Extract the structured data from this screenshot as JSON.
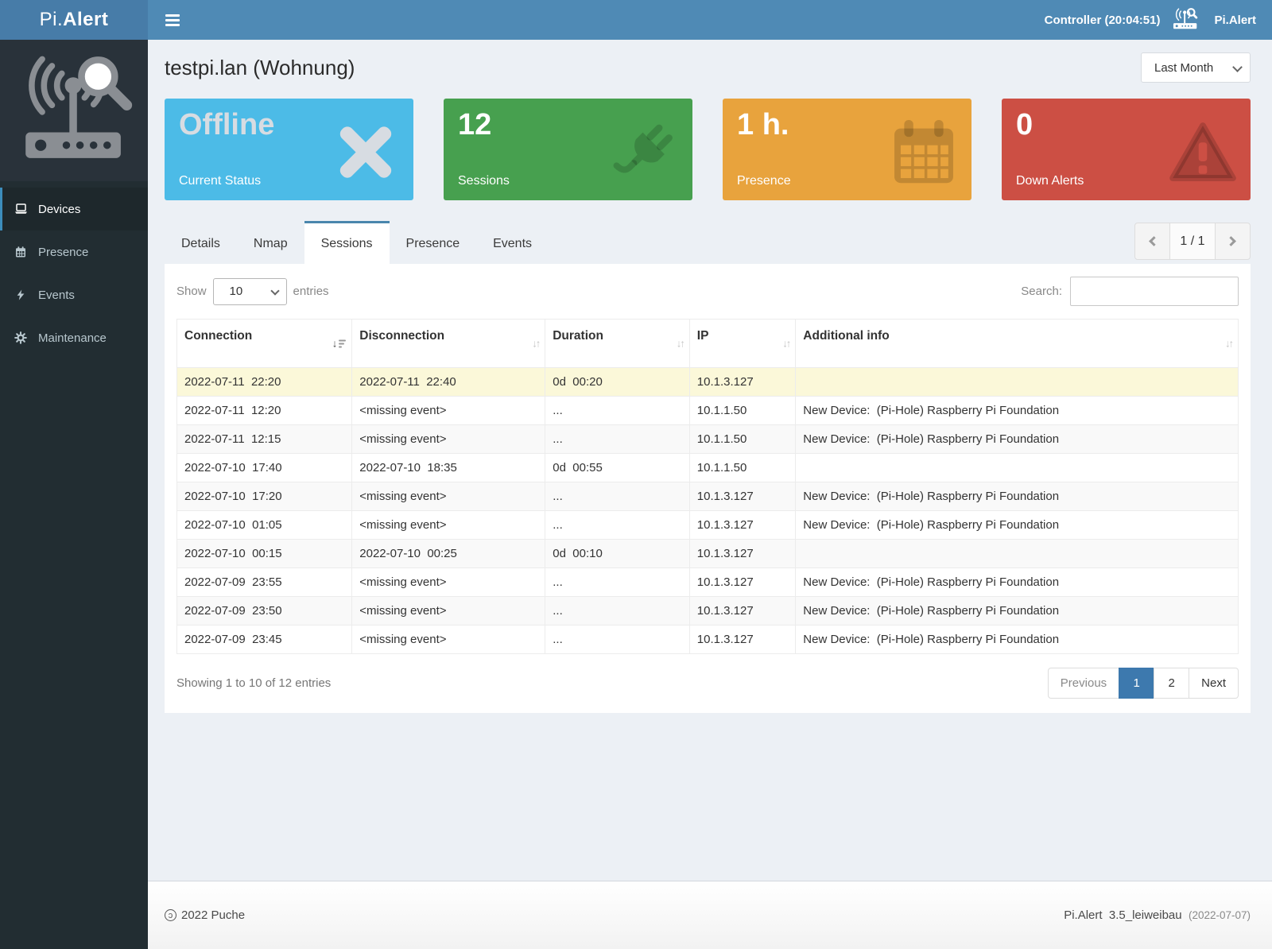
{
  "topbar": {
    "brand": {
      "prefix": "Pi.",
      "suffix": "Alert"
    },
    "controller_label": "Controller (20:04:51)",
    "app_label": "Pi.Alert"
  },
  "sidebar": {
    "items": [
      {
        "label": "Devices",
        "icon": "laptop-icon",
        "active": true
      },
      {
        "label": "Presence",
        "icon": "calendar-icon",
        "active": false
      },
      {
        "label": "Events",
        "icon": "bolt-icon",
        "active": false
      },
      {
        "label": "Maintenance",
        "icon": "gear-icon",
        "active": false
      }
    ]
  },
  "page": {
    "title": "testpi.lan (Wohnung)",
    "period_selected": "Last Month"
  },
  "cards": [
    {
      "value": "Offline",
      "label": "Current Status",
      "color": "#4cbbe7",
      "icon": "x-mark-icon",
      "muted_value": true
    },
    {
      "value": "12",
      "label": "Sessions",
      "color": "#47a04f",
      "icon": "plug-icon",
      "muted_value": false
    },
    {
      "value": "1 h.",
      "label": "Presence",
      "color": "#e8a33d",
      "icon": "calendar-icon",
      "muted_value": false
    },
    {
      "value": "0",
      "label": "Down Alerts",
      "color": "#cc4f44",
      "icon": "warning-icon",
      "muted_value": false
    }
  ],
  "tabs": {
    "items": [
      "Details",
      "Nmap",
      "Sessions",
      "Presence",
      "Events"
    ],
    "active": "Sessions",
    "pager_label": "1 / 1"
  },
  "table_controls": {
    "show_label": "Show",
    "length_value": "10",
    "entries_label": "entries",
    "search_label": "Search:",
    "search_value": ""
  },
  "table": {
    "columns": [
      "Connection",
      "Disconnection",
      "Duration",
      "IP",
      "Additional info"
    ],
    "rows": [
      {
        "connection": "2022-07-11  22:20",
        "disconnection": "2022-07-11  22:40",
        "duration": "0d  00:20",
        "ip": "10.1.3.127",
        "info": "",
        "highlight": true
      },
      {
        "connection": "2022-07-11  12:20",
        "disconnection": "<missing event>",
        "duration": "...",
        "ip": "10.1.1.50",
        "info": "New Device:  (Pi-Hole) Raspberry Pi Foundation",
        "highlight": false
      },
      {
        "connection": "2022-07-11  12:15",
        "disconnection": "<missing event>",
        "duration": "...",
        "ip": "10.1.1.50",
        "info": "New Device:  (Pi-Hole) Raspberry Pi Foundation",
        "highlight": false
      },
      {
        "connection": "2022-07-10  17:40",
        "disconnection": "2022-07-10  18:35",
        "duration": "0d  00:55",
        "ip": "10.1.1.50",
        "info": "",
        "highlight": false
      },
      {
        "connection": "2022-07-10  17:20",
        "disconnection": "<missing event>",
        "duration": "...",
        "ip": "10.1.3.127",
        "info": "New Device:  (Pi-Hole) Raspberry Pi Foundation",
        "highlight": false
      },
      {
        "connection": "2022-07-10  01:05",
        "disconnection": "<missing event>",
        "duration": "...",
        "ip": "10.1.3.127",
        "info": "New Device:  (Pi-Hole) Raspberry Pi Foundation",
        "highlight": false
      },
      {
        "connection": "2022-07-10  00:15",
        "disconnection": "2022-07-10  00:25",
        "duration": "0d  00:10",
        "ip": "10.1.3.127",
        "info": "",
        "highlight": false
      },
      {
        "connection": "2022-07-09  23:55",
        "disconnection": "<missing event>",
        "duration": "...",
        "ip": "10.1.3.127",
        "info": "New Device:  (Pi-Hole) Raspberry Pi Foundation",
        "highlight": false
      },
      {
        "connection": "2022-07-09  23:50",
        "disconnection": "<missing event>",
        "duration": "...",
        "ip": "10.1.3.127",
        "info": "New Device:  (Pi-Hole) Raspberry Pi Foundation",
        "highlight": false
      },
      {
        "connection": "2022-07-09  23:45",
        "disconnection": "<missing event>",
        "duration": "...",
        "ip": "10.1.3.127",
        "info": "New Device:  (Pi-Hole) Raspberry Pi Foundation",
        "highlight": false
      }
    ]
  },
  "table_footer": {
    "summary": "Showing 1 to 10 of 12 entries",
    "prev_label": "Previous",
    "pages": [
      "1",
      "2"
    ],
    "active_page": "1",
    "next_label": "Next"
  },
  "footer": {
    "copyleft_symbol": "ɔ",
    "left_text": "2022 Puche",
    "version_text": "Pi.Alert  3.5_leiweibau",
    "date_text": "(2022-07-07)"
  }
}
